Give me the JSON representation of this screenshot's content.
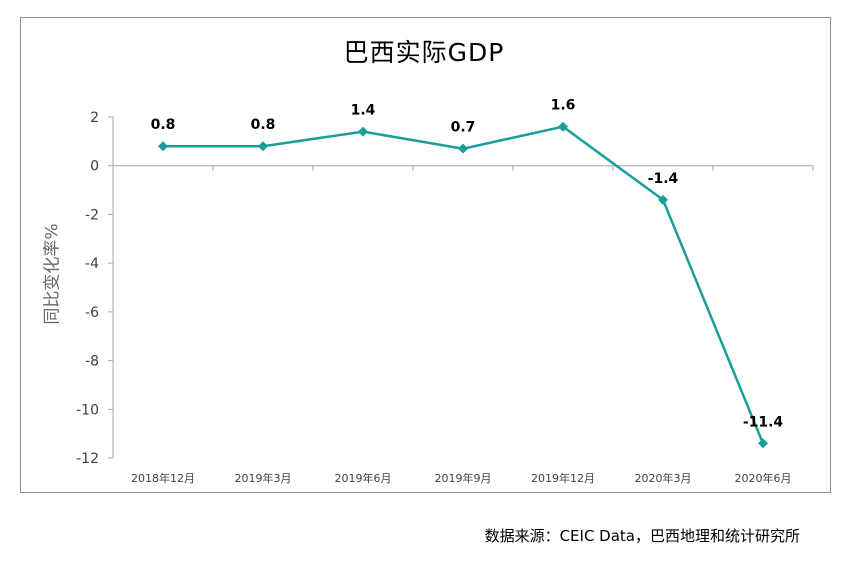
{
  "chart_data": {
    "type": "line",
    "title": "巴西实际GDP",
    "xlabel": "",
    "ylabel": "同比变化率%",
    "categories": [
      "2018年12月",
      "2019年3月",
      "2019年6月",
      "2019年9月",
      "2019年12月",
      "2020年3月",
      "2020年6月"
    ],
    "series": [
      {
        "values": [
          0.8,
          0.8,
          1.4,
          0.7,
          1.6,
          -1.4,
          -11.4
        ],
        "labels": [
          "0.8",
          "0.8",
          "1.4",
          "0.7",
          "1.6",
          "-1.4",
          "-11.4"
        ]
      }
    ],
    "ylim": [
      -12,
      2
    ],
    "yticks": [
      2,
      0,
      -2,
      -4,
      -6,
      -8,
      -10,
      -12
    ],
    "grid": false,
    "line_color": "#1a9e9a"
  },
  "footer": {
    "source": "数据来源：CEIC Data，巴西地理和统计研究所"
  }
}
